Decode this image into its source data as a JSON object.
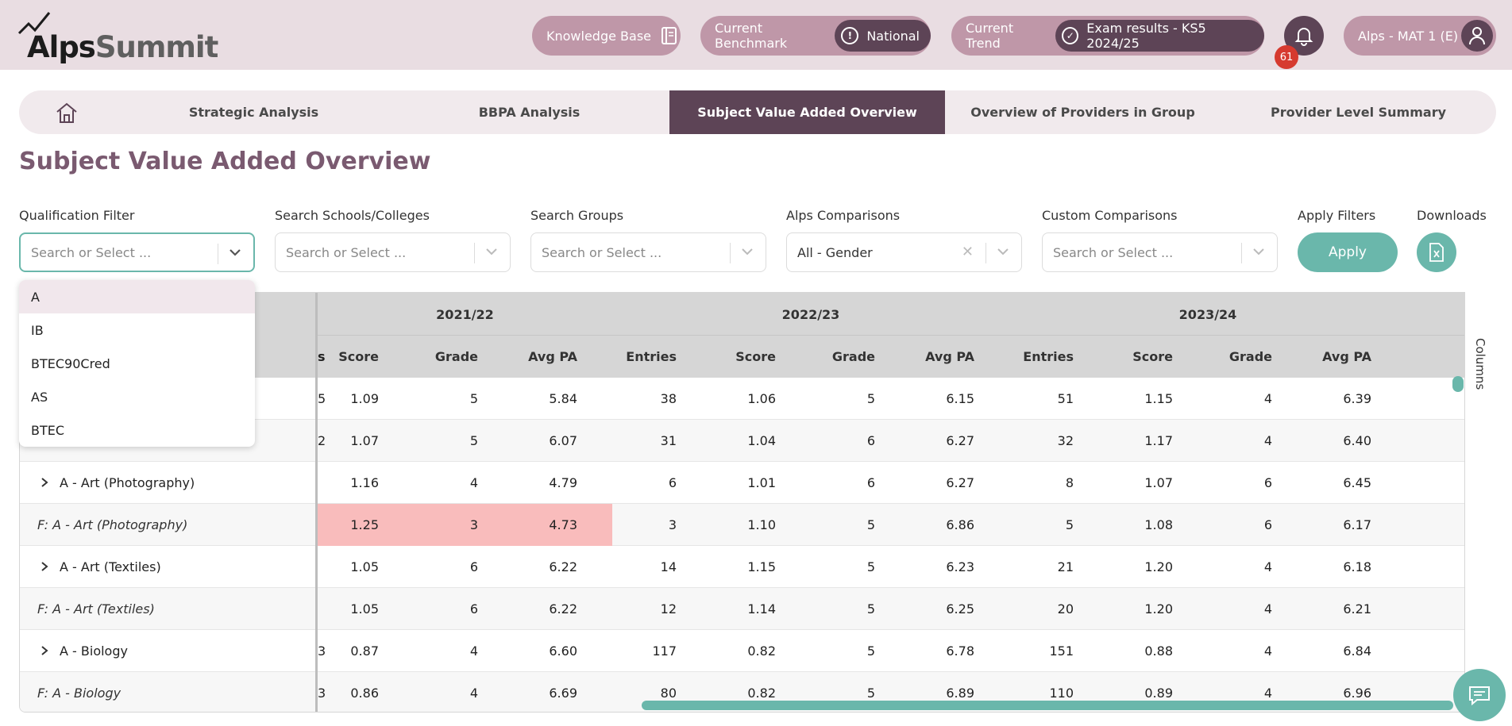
{
  "header": {
    "logo": {
      "alps": "Alps",
      "summit": "Summit"
    },
    "knowledge_base": "Knowledge Base",
    "benchmark_label": "Current Benchmark",
    "benchmark_value": "National",
    "trend_label": "Current Trend",
    "trend_value": "Exam results - KS5 2024/25",
    "notification_count": "61",
    "user": "Alps - MAT 1 (E)"
  },
  "nav": {
    "tabs": [
      {
        "label": "Strategic Analysis"
      },
      {
        "label": "BBPA Analysis"
      },
      {
        "label": "Subject Value Added Overview"
      },
      {
        "label": "Overview of Providers in Group"
      },
      {
        "label": "Provider Level Summary"
      }
    ],
    "active_tab": "Subject Value Added Overview"
  },
  "page_title": "Subject Value Added Overview",
  "filters": {
    "qualification": {
      "label": "Qualification Filter",
      "placeholder": "Search or Select ..."
    },
    "schools": {
      "label": "Search Schools/Colleges",
      "placeholder": "Search or Select ..."
    },
    "groups": {
      "label": "Search Groups",
      "placeholder": "Search or Select ..."
    },
    "alps": {
      "label": "Alps Comparisons",
      "value": "All - Gender"
    },
    "custom": {
      "label": "Custom Comparisons",
      "placeholder": "Search or Select ..."
    },
    "apply": {
      "label": "Apply Filters",
      "button": "Apply"
    },
    "downloads": {
      "label": "Downloads"
    }
  },
  "dropdown": {
    "options": [
      "A",
      "IB",
      "BTEC90Cred",
      "AS",
      "BTEC"
    ],
    "highlighted": "A"
  },
  "table": {
    "years": [
      "2021/22",
      "2022/23",
      "2023/24"
    ],
    "partial_first_header": "s",
    "columns_2122": [
      "Score",
      "Grade",
      "Avg PA"
    ],
    "columns_full": [
      "Entries",
      "Score",
      "Grade",
      "Avg PA"
    ],
    "side_panel_label": "Columns",
    "rows": [
      {
        "name": "",
        "child": false,
        "partial": "5",
        "c": [
          "1.09",
          "5",
          "5.84",
          "38",
          "1.06",
          "5",
          "6.15",
          "51",
          "1.15",
          "4",
          "6.39"
        ]
      },
      {
        "name": "",
        "child": true,
        "partial": "2",
        "c": [
          "1.07",
          "5",
          "6.07",
          "31",
          "1.04",
          "6",
          "6.27",
          "32",
          "1.17",
          "4",
          "6.40"
        ]
      },
      {
        "name": "A - Art (Photography)",
        "child": false,
        "partial": "",
        "c": [
          "1.16",
          "4",
          "4.79",
          "6",
          "1.01",
          "6",
          "6.27",
          "8",
          "1.07",
          "6",
          "6.45"
        ]
      },
      {
        "name": "F: A - Art (Photography)",
        "child": true,
        "partial": "",
        "c": [
          "1.25",
          "3",
          "4.73",
          "3",
          "1.10",
          "5",
          "6.86",
          "5",
          "1.08",
          "6",
          "6.17"
        ],
        "highlight": true
      },
      {
        "name": "A - Art (Textiles)",
        "child": false,
        "partial": "",
        "c": [
          "1.05",
          "6",
          "6.22",
          "14",
          "1.15",
          "5",
          "6.23",
          "21",
          "1.20",
          "4",
          "6.18"
        ]
      },
      {
        "name": "F: A - Art (Textiles)",
        "child": true,
        "partial": "",
        "c": [
          "1.05",
          "6",
          "6.22",
          "12",
          "1.14",
          "5",
          "6.25",
          "20",
          "1.20",
          "4",
          "6.21"
        ]
      },
      {
        "name": "A - Biology",
        "child": false,
        "partial": "3",
        "c": [
          "0.87",
          "4",
          "6.60",
          "117",
          "0.82",
          "5",
          "6.78",
          "151",
          "0.88",
          "4",
          "6.84"
        ]
      },
      {
        "name": "F: A - Biology",
        "child": true,
        "partial": "3",
        "c": [
          "0.86",
          "4",
          "6.69",
          "80",
          "0.82",
          "5",
          "6.89",
          "110",
          "0.89",
          "4",
          "6.96"
        ]
      }
    ]
  },
  "colors": {
    "accent": "#6ab7ab",
    "brand": "#5d4456",
    "highlight": "#f9bcbc"
  }
}
